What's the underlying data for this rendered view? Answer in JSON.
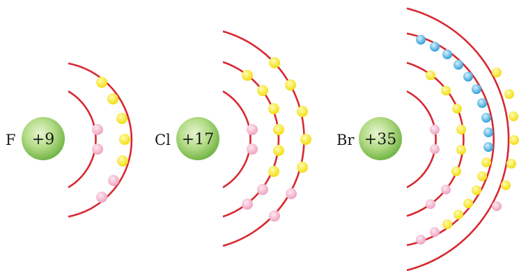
{
  "atoms": [
    {
      "symbol": "F",
      "charge": "+9",
      "shells": [
        {
          "electrons": 2,
          "color": "pink"
        },
        {
          "electrons": 7,
          "color": "yellow"
        }
      ]
    },
    {
      "symbol": "Cl",
      "charge": "+17",
      "shells": [
        {
          "electrons": 2,
          "color": "pink"
        },
        {
          "electrons": 8,
          "color": "yellow"
        },
        {
          "electrons": 7,
          "color": "yellow"
        }
      ]
    },
    {
      "symbol": "Br",
      "charge": "+35",
      "shells": [
        {
          "electrons": 2,
          "color": "pink"
        },
        {
          "electrons": 8,
          "color": "yellow"
        },
        {
          "electrons": 18,
          "color": "pink+yellow+blue"
        },
        {
          "electrons": 7,
          "color": "yellow"
        }
      ]
    }
  ],
  "colors": {
    "shell_line": "#d7282f",
    "nucleus_light": "#e2f2c8",
    "nucleus_dark": "#7fbe4f",
    "electron_pink": "#f4b8cf",
    "electron_yellow": "#fbe830",
    "electron_blue": "#3aa6e0"
  }
}
